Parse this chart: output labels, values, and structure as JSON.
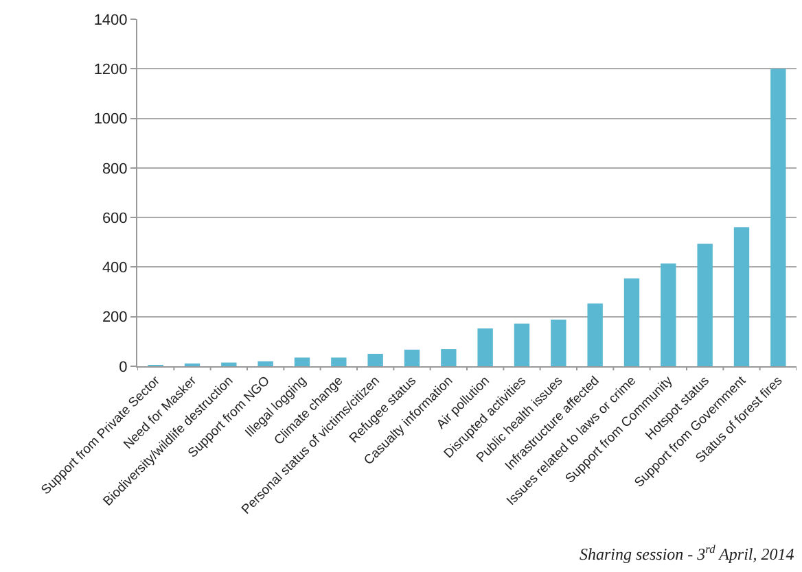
{
  "chart_data": {
    "type": "bar",
    "categories": [
      "Support from Private Sector",
      "Need for Masker",
      "Biodiversity/wildlife destruction",
      "Support from NGO",
      "Illegal logging",
      "Climate change",
      "Personal status of victims/citizen",
      "Refugee status",
      "Casualty information",
      "Air pollution",
      "Disrupted activities",
      "Public health issues",
      "Infrastructure affected",
      "Issues related to laws or crime",
      "Support from Community",
      "Hotspot status",
      "Support from Government",
      "Status of forest fires"
    ],
    "series": [
      {
        "color": "#5bb8d2",
        "values": [
          3,
          10,
          15,
          20,
          35,
          35,
          50,
          67,
          69,
          153,
          172,
          188,
          253,
          354,
          414,
          494,
          561,
          1200
        ]
      }
    ],
    "ylim": [
      0,
      1400
    ],
    "yticks": [
      0,
      200,
      400,
      600,
      800,
      1000,
      1200,
      1400
    ],
    "grid": "y",
    "annotations": [
      "Sharing session - 3$^{rd}$ April, 2014"
    ]
  }
}
